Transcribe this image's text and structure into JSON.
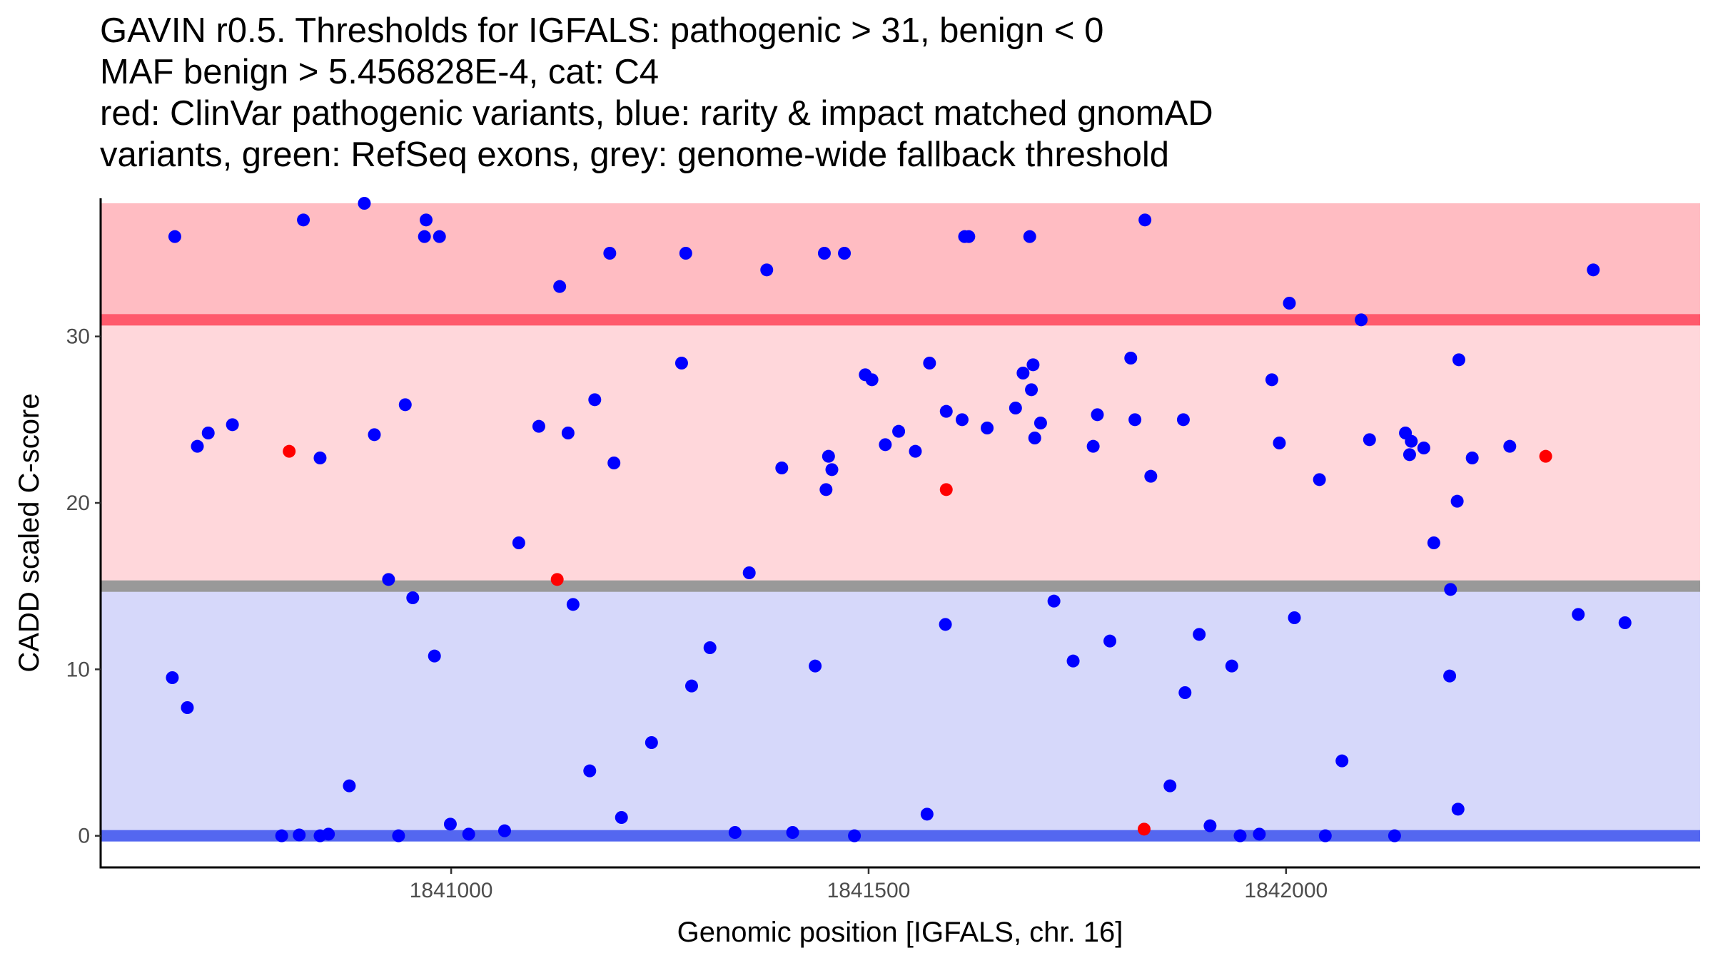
{
  "chart_data": {
    "type": "scatter",
    "title_lines": [
      "GAVIN r0.5. Thresholds for IGFALS: pathogenic > 31, benign < 0",
      "MAF benign > 5.456828E-4, cat: C4",
      "red: ClinVar pathogenic variants, blue: rarity & impact matched gnomAD",
      "variants, green: RefSeq exons, grey: genome-wide fallback threshold"
    ],
    "xlabel": "Genomic position [IGFALS, chr. 16]",
    "ylabel": "CADD scaled C-score",
    "xlim": [
      1840581,
      1842496
    ],
    "ylim": [
      -1.9,
      38.3
    ],
    "x_ticks": [
      1841000,
      1841500,
      1842000
    ],
    "y_ticks": [
      0,
      10,
      20,
      30
    ],
    "grid": false,
    "bands": [
      {
        "name": "pathogenic-zone",
        "y0": 31,
        "y1": 38,
        "color": "#ffbcc2"
      },
      {
        "name": "uncertain-upper-zone",
        "y0": 15,
        "y1": 31,
        "color": "#ffd7db"
      },
      {
        "name": "benign-zone",
        "y0": 0,
        "y1": 15,
        "color": "#d6d8fa"
      }
    ],
    "threshold_lines": [
      {
        "name": "pathogenic-threshold",
        "y": 31,
        "color": "#ff5a6c"
      },
      {
        "name": "fallback-threshold",
        "y": 15,
        "color": "#999999"
      },
      {
        "name": "benign-threshold",
        "y": 0,
        "color": "#5467f0"
      }
    ],
    "series": [
      {
        "name": "ClinVar pathogenic variants",
        "color": "#ff0000",
        "points": [
          {
            "x": 1840806,
            "y": 23.1
          },
          {
            "x": 1841127,
            "y": 15.4
          },
          {
            "x": 1841593,
            "y": 20.8
          },
          {
            "x": 1841830,
            "y": 0.4
          },
          {
            "x": 1842311,
            "y": 22.8
          }
        ]
      },
      {
        "name": "gnomAD variants",
        "color": "#0000ff",
        "points": [
          {
            "x": 1840669,
            "y": 36.0
          },
          {
            "x": 1840666,
            "y": 9.5
          },
          {
            "x": 1840684,
            "y": 7.7
          },
          {
            "x": 1840696,
            "y": 23.4
          },
          {
            "x": 1840709,
            "y": 24.2
          },
          {
            "x": 1840738,
            "y": 24.7
          },
          {
            "x": 1840797,
            "y": 0.0
          },
          {
            "x": 1840818,
            "y": 0.05
          },
          {
            "x": 1840823,
            "y": 37.0
          },
          {
            "x": 1840843,
            "y": 22.7
          },
          {
            "x": 1840843,
            "y": 0.0
          },
          {
            "x": 1840853,
            "y": 0.1
          },
          {
            "x": 1840878,
            "y": 3.0
          },
          {
            "x": 1840896,
            "y": 38.0
          },
          {
            "x": 1840908,
            "y": 24.1
          },
          {
            "x": 1840925,
            "y": 15.4
          },
          {
            "x": 1840937,
            "y": 0.0
          },
          {
            "x": 1840945,
            "y": 25.9
          },
          {
            "x": 1840954,
            "y": 14.3
          },
          {
            "x": 1840968,
            "y": 36.0
          },
          {
            "x": 1840970,
            "y": 37.0
          },
          {
            "x": 1840980,
            "y": 10.8
          },
          {
            "x": 1840986,
            "y": 36.0
          },
          {
            "x": 1840999,
            "y": 0.7
          },
          {
            "x": 1841021,
            "y": 0.1
          },
          {
            "x": 1841064,
            "y": 0.3
          },
          {
            "x": 1841081,
            "y": 17.6
          },
          {
            "x": 1841105,
            "y": 24.6
          },
          {
            "x": 1841130,
            "y": 33.0
          },
          {
            "x": 1841140,
            "y": 24.2
          },
          {
            "x": 1841146,
            "y": 13.9
          },
          {
            "x": 1841166,
            "y": 3.9
          },
          {
            "x": 1841172,
            "y": 26.2
          },
          {
            "x": 1841190,
            "y": 35.0
          },
          {
            "x": 1841195,
            "y": 22.4
          },
          {
            "x": 1841204,
            "y": 1.1
          },
          {
            "x": 1841240,
            "y": 5.6
          },
          {
            "x": 1841276,
            "y": 28.4
          },
          {
            "x": 1841281,
            "y": 35.0
          },
          {
            "x": 1841288,
            "y": 9.0
          },
          {
            "x": 1841310,
            "y": 11.3
          },
          {
            "x": 1841340,
            "y": 0.2
          },
          {
            "x": 1841357,
            "y": 15.8
          },
          {
            "x": 1841378,
            "y": 34.0
          },
          {
            "x": 1841396,
            "y": 22.1
          },
          {
            "x": 1841409,
            "y": 0.2
          },
          {
            "x": 1841436,
            "y": 10.2
          },
          {
            "x": 1841447,
            "y": 35.0
          },
          {
            "x": 1841449,
            "y": 20.8
          },
          {
            "x": 1841452,
            "y": 22.8
          },
          {
            "x": 1841456,
            "y": 22.0
          },
          {
            "x": 1841471,
            "y": 35.0
          },
          {
            "x": 1841483,
            "y": 0.0
          },
          {
            "x": 1841496,
            "y": 27.7
          },
          {
            "x": 1841504,
            "y": 27.4
          },
          {
            "x": 1841520,
            "y": 23.5
          },
          {
            "x": 1841536,
            "y": 24.3
          },
          {
            "x": 1841556,
            "y": 23.1
          },
          {
            "x": 1841570,
            "y": 1.3
          },
          {
            "x": 1841573,
            "y": 28.4
          },
          {
            "x": 1841592,
            "y": 12.7
          },
          {
            "x": 1841593,
            "y": 25.5
          },
          {
            "x": 1841612,
            "y": 25.0
          },
          {
            "x": 1841615,
            "y": 36.0
          },
          {
            "x": 1841620,
            "y": 36.0
          },
          {
            "x": 1841642,
            "y": 24.5
          },
          {
            "x": 1841676,
            "y": 25.7
          },
          {
            "x": 1841685,
            "y": 27.8
          },
          {
            "x": 1841693,
            "y": 36.0
          },
          {
            "x": 1841695,
            "y": 26.8
          },
          {
            "x": 1841697,
            "y": 28.3
          },
          {
            "x": 1841699,
            "y": 23.9
          },
          {
            "x": 1841706,
            "y": 24.8
          },
          {
            "x": 1841722,
            "y": 14.1
          },
          {
            "x": 1841745,
            "y": 10.5
          },
          {
            "x": 1841769,
            "y": 23.4
          },
          {
            "x": 1841774,
            "y": 25.3
          },
          {
            "x": 1841789,
            "y": 11.7
          },
          {
            "x": 1841814,
            "y": 28.7
          },
          {
            "x": 1841819,
            "y": 25.0
          },
          {
            "x": 1841831,
            "y": 37.0
          },
          {
            "x": 1841838,
            "y": 21.6
          },
          {
            "x": 1841861,
            "y": 3.0
          },
          {
            "x": 1841877,
            "y": 25.0
          },
          {
            "x": 1841879,
            "y": 8.6
          },
          {
            "x": 1841896,
            "y": 12.1
          },
          {
            "x": 1841909,
            "y": 0.6
          },
          {
            "x": 1841935,
            "y": 10.2
          },
          {
            "x": 1841945,
            "y": 0.0
          },
          {
            "x": 1841968,
            "y": 0.1
          },
          {
            "x": 1841983,
            "y": 27.4
          },
          {
            "x": 1841992,
            "y": 23.6
          },
          {
            "x": 1842004,
            "y": 32.0
          },
          {
            "x": 1842010,
            "y": 13.1
          },
          {
            "x": 1842040,
            "y": 21.4
          },
          {
            "x": 1842047,
            "y": 0.0
          },
          {
            "x": 1842067,
            "y": 4.5
          },
          {
            "x": 1842090,
            "y": 31.0
          },
          {
            "x": 1842100,
            "y": 23.8
          },
          {
            "x": 1842130,
            "y": 0.0
          },
          {
            "x": 1842143,
            "y": 24.2
          },
          {
            "x": 1842148,
            "y": 22.9
          },
          {
            "x": 1842150,
            "y": 23.7
          },
          {
            "x": 1842165,
            "y": 23.3
          },
          {
            "x": 1842177,
            "y": 17.6
          },
          {
            "x": 1842197,
            "y": 14.8
          },
          {
            "x": 1842196,
            "y": 9.6
          },
          {
            "x": 1842205,
            "y": 20.1
          },
          {
            "x": 1842206,
            "y": 1.6
          },
          {
            "x": 1842207,
            "y": 28.6
          },
          {
            "x": 1842223,
            "y": 22.7
          },
          {
            "x": 1842268,
            "y": 23.4
          },
          {
            "x": 1842350,
            "y": 13.3
          },
          {
            "x": 1842368,
            "y": 34.0
          },
          {
            "x": 1842406,
            "y": 12.8
          }
        ]
      }
    ]
  }
}
